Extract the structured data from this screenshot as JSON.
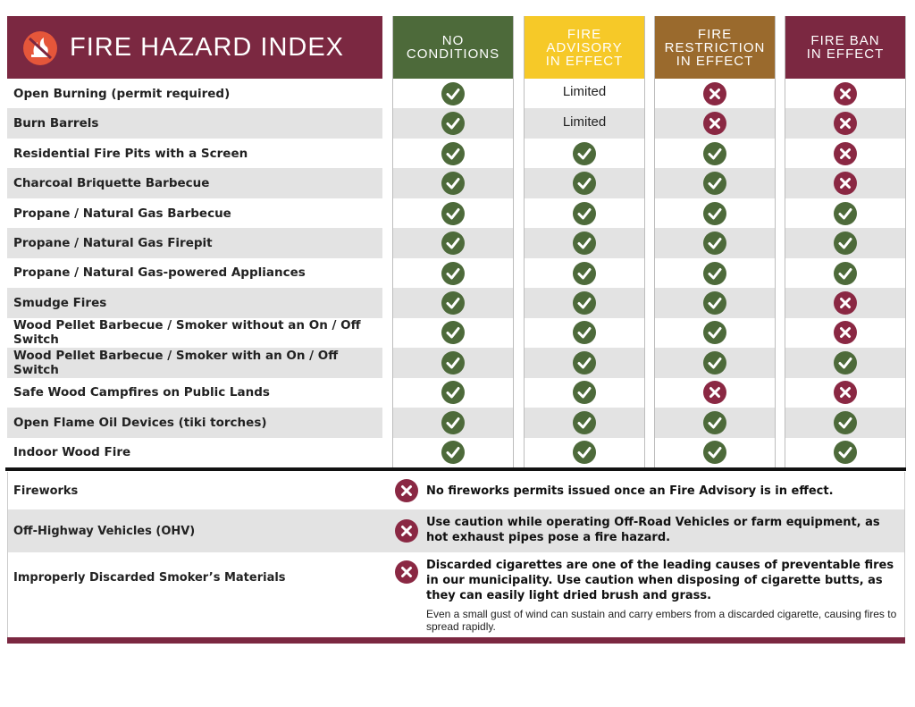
{
  "header": {
    "title": "FIRE HAZARD INDEX",
    "columns": [
      [
        "NO",
        "CONDITIONS"
      ],
      [
        "FIRE",
        "ADVISORY",
        "IN EFFECT"
      ],
      [
        "FIRE",
        "RESTRICTION",
        "IN EFFECT"
      ],
      [
        "FIRE BAN",
        "IN EFFECT"
      ]
    ]
  },
  "table": {
    "rows": [
      {
        "label": "Open Burning (permit required)",
        "limited": "Limited"
      },
      {
        "label": "Burn Barrels",
        "limited": "Limited"
      },
      {
        "label": "Residential Fire Pits with a Screen"
      },
      {
        "label": "Charcoal Briquette Barbecue"
      },
      {
        "label": "Propane / Natural Gas Barbecue"
      },
      {
        "label": "Propane / Natural Gas Firepit"
      },
      {
        "label": "Propane / Natural Gas-powered Appliances"
      },
      {
        "label": "Smudge Fires"
      },
      {
        "label": "Wood Pellet Barbecue / Smoker without an On / Off Switch"
      },
      {
        "label": "Wood Pellet Barbecue / Smoker with an On / Off Switch"
      },
      {
        "label": "Safe Wood Campfires on Public Lands"
      },
      {
        "label": "Open Flame Oil Devices (tiki torches)"
      },
      {
        "label": "Indoor Wood Fire"
      }
    ]
  },
  "notes": [
    {
      "label": "Fireworks",
      "text": "No fireworks permits issued once an Fire Advisory is in effect."
    },
    {
      "label": "Off-Highway Vehicles (OHV)",
      "text": "Use caution while operating Off-Road Vehicles or farm equipment, as hot exhaust pipes pose a fire hazard."
    },
    {
      "label": "Improperly Discarded Smoker’s Materials",
      "text": "Discarded cigarettes are one of the leading causes of preventable fires in our municipality.  Use caution when disposing of cigarette butts, as they can easily light dried brush and grass.",
      "extra": "Even a small gust of wind can sustain and carry embers from a discarded cigarette, causing fires to spread rapidly."
    }
  ]
}
